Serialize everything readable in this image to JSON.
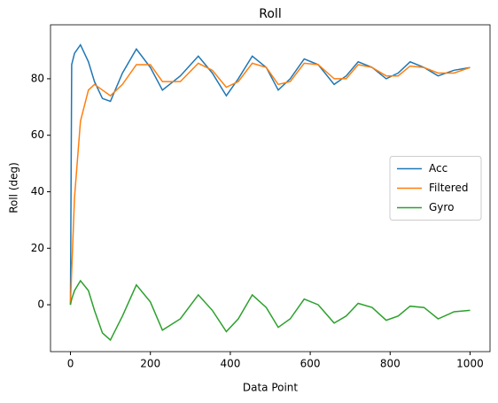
{
  "chart_data": {
    "type": "line",
    "title": "Roll",
    "xlabel": "Data Point",
    "ylabel": "Roll (deg)",
    "x": [
      0,
      3,
      10,
      25,
      45,
      60,
      80,
      100,
      130,
      165,
      200,
      230,
      275,
      320,
      355,
      390,
      420,
      455,
      490,
      520,
      550,
      585,
      620,
      660,
      690,
      720,
      755,
      790,
      820,
      850,
      885,
      920,
      960,
      1000
    ],
    "series": [
      {
        "name": "Acc",
        "color": "#1f77b4",
        "values": [
          0,
          85,
          89,
          92,
          86,
          79,
          73,
          72,
          82,
          90.5,
          84,
          76,
          81,
          88,
          82,
          74,
          80,
          88,
          84,
          76,
          80,
          87,
          85,
          78,
          81,
          86,
          84,
          80,
          82,
          86,
          84,
          81,
          83,
          84
        ]
      },
      {
        "name": "Filtered",
        "color": "#ff7f0e",
        "values": [
          0,
          12,
          38,
          65,
          76,
          78,
          76,
          74,
          78,
          85,
          85,
          79,
          79,
          85.5,
          83,
          77,
          79,
          85.5,
          84,
          78,
          79,
          85.5,
          85,
          80,
          80,
          85,
          84,
          81,
          81,
          84.5,
          84,
          82,
          82,
          84
        ]
      },
      {
        "name": "Gyro",
        "color": "#2ca02c",
        "values": [
          0,
          2,
          5,
          8.5,
          5,
          -2,
          -10,
          -12.5,
          -4,
          7,
          1,
          -9,
          -5,
          3.5,
          -2,
          -9.5,
          -5,
          3.5,
          -1,
          -8,
          -5,
          2,
          0,
          -6.5,
          -4,
          0.5,
          -1,
          -5.5,
          -4,
          -0.5,
          -1,
          -5,
          -2.5,
          -2
        ]
      }
    ],
    "xlim": [
      -50,
      1050
    ],
    "xticks": [
      0,
      200,
      400,
      600,
      800,
      1000
    ],
    "ylim": [
      -16.6,
      99.1
    ],
    "yticks": [
      0,
      20,
      40,
      60,
      80
    ],
    "legend": "center right"
  }
}
